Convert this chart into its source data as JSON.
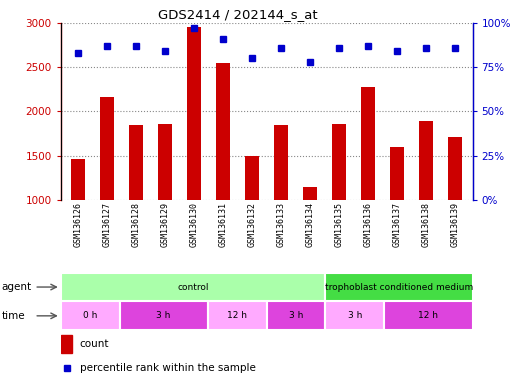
{
  "title": "GDS2414 / 202144_s_at",
  "samples": [
    "GSM136126",
    "GSM136127",
    "GSM136128",
    "GSM136129",
    "GSM136130",
    "GSM136131",
    "GSM136132",
    "GSM136133",
    "GSM136134",
    "GSM136135",
    "GSM136136",
    "GSM136137",
    "GSM136138",
    "GSM136139"
  ],
  "counts": [
    1460,
    2160,
    1840,
    1855,
    2960,
    2545,
    1500,
    1845,
    1145,
    1855,
    2280,
    1600,
    1890,
    1710
  ],
  "percentile_ranks": [
    83,
    87,
    87,
    84,
    97,
    91,
    80,
    86,
    78,
    86,
    87,
    84,
    86,
    86
  ],
  "bar_color": "#cc0000",
  "dot_color": "#0000cc",
  "ylim_left": [
    1000,
    3000
  ],
  "ylim_right": [
    0,
    100
  ],
  "yticks_left": [
    1000,
    1500,
    2000,
    2500,
    3000
  ],
  "yticks_right": [
    0,
    25,
    50,
    75,
    100
  ],
  "agent_groups": [
    {
      "label": "control",
      "start": 0,
      "end": 9,
      "color": "#aaffaa"
    },
    {
      "label": "trophoblast conditioned medium",
      "start": 9,
      "end": 14,
      "color": "#44dd44"
    }
  ],
  "time_groups": [
    {
      "label": "0 h",
      "start": 0,
      "end": 2,
      "color": "#ffaaff"
    },
    {
      "label": "3 h",
      "start": 2,
      "end": 5,
      "color": "#dd44dd"
    },
    {
      "label": "12 h",
      "start": 5,
      "end": 7,
      "color": "#ffaaff"
    },
    {
      "label": "3 h",
      "start": 9,
      "end": 11,
      "color": "#ffaaff"
    },
    {
      "label": "12 h",
      "start": 11,
      "end": 14,
      "color": "#dd44dd"
    }
  ],
  "tick_bg": "#cccccc",
  "plot_bg": "#ffffff",
  "grid_color": "#888888",
  "bar_width": 0.5
}
